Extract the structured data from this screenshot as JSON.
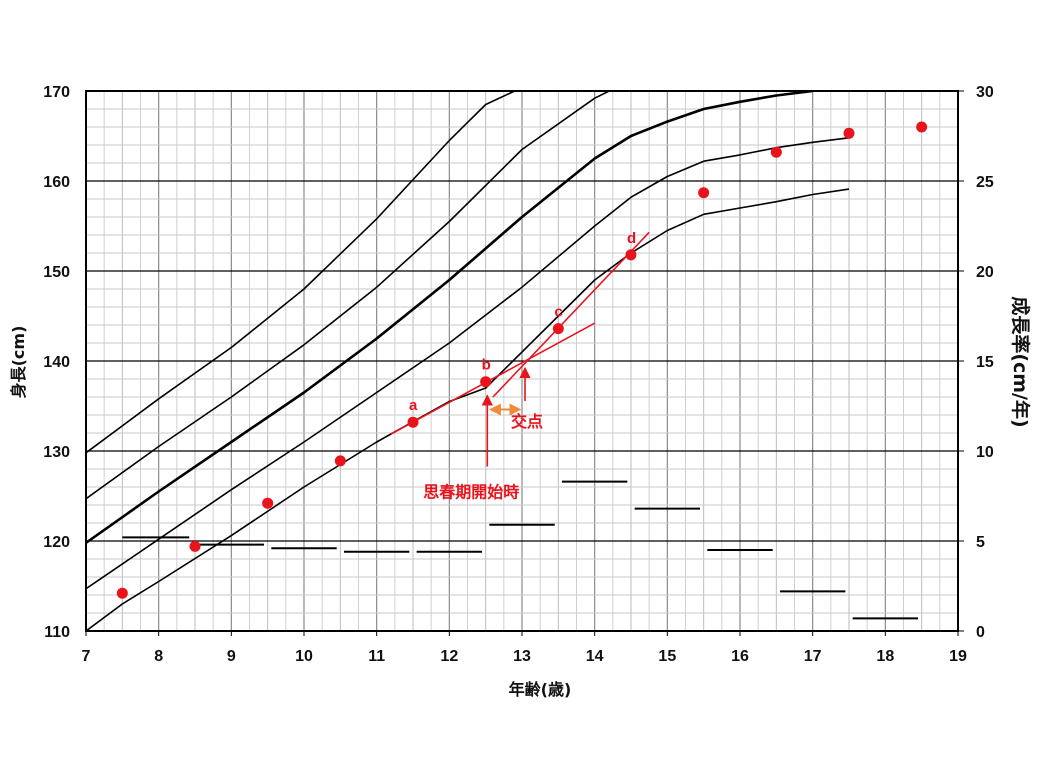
{
  "chart_data": {
    "type": "line",
    "title": "",
    "xlabel": "年齢(歳)",
    "ylabel": "身長(cm)",
    "y2label": "成長率(cm/年)",
    "xlim": [
      7,
      19
    ],
    "ylim": [
      110,
      170
    ],
    "y2lim": [
      0,
      30
    ],
    "x_ticks": [
      "7",
      "8",
      "9",
      "10",
      "11",
      "12",
      "13",
      "14",
      "15",
      "16",
      "17",
      "18",
      "19"
    ],
    "y_ticks": [
      "110",
      "120",
      "130",
      "140",
      "150",
      "160",
      "170"
    ],
    "y2_ticks": [
      "0",
      "5",
      "10",
      "15",
      "20",
      "25",
      "30"
    ],
    "grid": true,
    "colors": {
      "curve": "#000000",
      "points": "#e8131b",
      "annotation": "#e8131b",
      "bracket": "#f08a3c",
      "grid_minor": "#c8c8c8",
      "grid_major": "#000000"
    },
    "reference_curves": [
      {
        "name": "curve-top",
        "width": 1.6,
        "x": [
          7,
          8,
          9,
          10,
          11,
          12,
          12.5,
          12.9
        ],
        "y": [
          129.8,
          135.8,
          141.5,
          148.0,
          155.8,
          164.5,
          168.5,
          170.0
        ]
      },
      {
        "name": "curve-upper",
        "width": 1.6,
        "x": [
          7,
          8,
          9,
          10,
          11,
          12,
          13,
          14,
          14.2
        ],
        "y": [
          124.7,
          130.5,
          136.0,
          141.8,
          148.2,
          155.5,
          163.5,
          169.2,
          170.0
        ]
      },
      {
        "name": "curve-median",
        "width": 2.6,
        "x": [
          7,
          8,
          9,
          10,
          11,
          12,
          13,
          14,
          14.5,
          15,
          15.5,
          16,
          16.5,
          17.0
        ],
        "y": [
          119.8,
          125.5,
          131.0,
          136.5,
          142.5,
          149.0,
          156.0,
          162.5,
          165.0,
          166.6,
          168.0,
          168.8,
          169.5,
          170.0
        ]
      },
      {
        "name": "curve-lower",
        "width": 1.6,
        "x": [
          7,
          8,
          9,
          10,
          11,
          12,
          13,
          14,
          14.5,
          15,
          15.5,
          16,
          16.5,
          17,
          17.5
        ],
        "y": [
          114.7,
          120.2,
          125.7,
          131.0,
          136.5,
          142.0,
          148.2,
          155.0,
          158.2,
          160.5,
          162.2,
          162.9,
          163.7,
          164.3,
          164.8
        ]
      },
      {
        "name": "curve-bottom",
        "width": 1.6,
        "x": [
          7,
          7.5,
          8,
          9,
          10,
          11,
          12,
          12.5,
          13,
          14,
          14.5,
          15,
          15.5,
          16,
          16.5,
          17,
          17.5
        ],
        "y": [
          110.0,
          113.0,
          115.5,
          120.6,
          126.0,
          131.0,
          135.5,
          137.0,
          141.0,
          149.0,
          152.0,
          154.5,
          156.3,
          157.0,
          157.7,
          158.5,
          159.1
        ]
      }
    ],
    "series": [
      {
        "name": "身長 (measured height)",
        "type": "scatter",
        "axis": "left",
        "x": [
          7.5,
          8.5,
          9.5,
          10.5,
          11.5,
          12.5,
          13.5,
          14.5,
          15.5,
          16.5,
          17.5,
          18.5
        ],
        "y": [
          114.2,
          119.4,
          124.2,
          128.9,
          133.2,
          137.7,
          143.6,
          151.8,
          158.7,
          163.2,
          165.3,
          166.0
        ]
      },
      {
        "name": "成長率 (growth rate)",
        "type": "step-segments",
        "axis": "right",
        "segments": [
          {
            "x0": 7.5,
            "x1": 8.42,
            "y": 5.2
          },
          {
            "x0": 8.52,
            "x1": 9.45,
            "y": 4.8
          },
          {
            "x0": 9.55,
            "x1": 10.45,
            "y": 4.6
          },
          {
            "x0": 10.55,
            "x1": 11.45,
            "y": 4.4
          },
          {
            "x0": 11.55,
            "x1": 12.45,
            "y": 4.4
          },
          {
            "x0": 12.55,
            "x1": 13.45,
            "y": 5.9
          },
          {
            "x0": 13.55,
            "x1": 14.45,
            "y": 8.3
          },
          {
            "x0": 14.55,
            "x1": 15.45,
            "y": 6.8
          },
          {
            "x0": 15.55,
            "x1": 16.45,
            "y": 4.5
          },
          {
            "x0": 16.55,
            "x1": 17.45,
            "y": 2.2
          },
          {
            "x0": 17.55,
            "x1": 18.45,
            "y": 0.7
          }
        ]
      }
    ],
    "annotations": {
      "point_labels": [
        {
          "text": "a",
          "x": 11.5,
          "y": 133.2
        },
        {
          "text": "b",
          "x": 12.5,
          "y": 137.7
        },
        {
          "text": "c",
          "x": 13.5,
          "y": 143.6
        },
        {
          "text": "d",
          "x": 14.5,
          "y": 151.8
        }
      ],
      "fit_lines": [
        {
          "name": "line-ab",
          "x0": 11.2,
          "y0": 131.9,
          "x1": 14.0,
          "y1": 144.2
        },
        {
          "name": "line-cd",
          "x0": 12.6,
          "y0": 136.0,
          "x1": 14.75,
          "y1": 154.3
        }
      ],
      "intersection": {
        "x": 13.0,
        "y": 140.0,
        "label": "交点"
      },
      "puberty_onset": {
        "x": 12.55,
        "y": 136.5,
        "label": "思春期開始時"
      }
    }
  }
}
